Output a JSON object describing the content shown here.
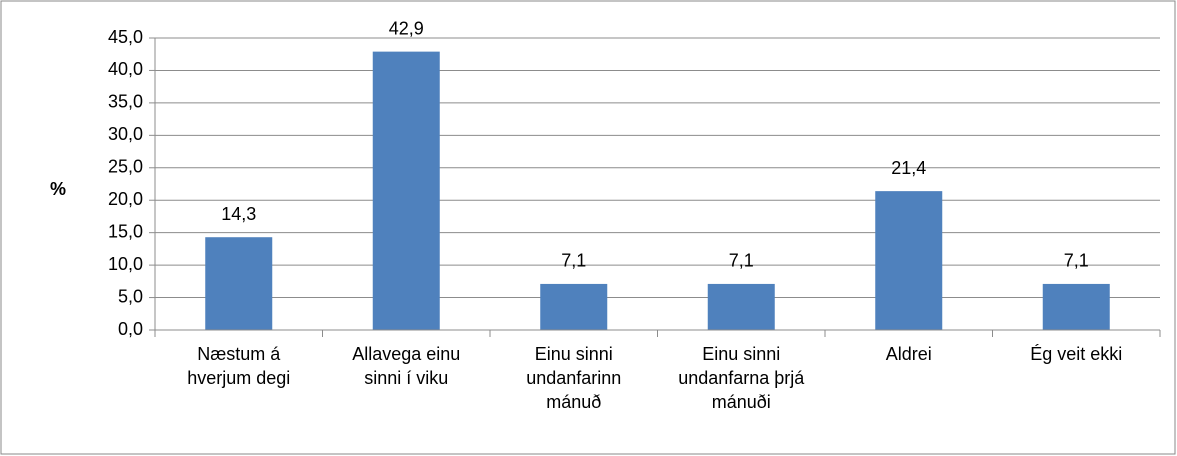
{
  "chart_data": {
    "type": "bar",
    "y_label": "%",
    "categories": [
      "Næstum á hverjum degi",
      "Allavega einu sinni í viku",
      "Einu sinni undanfarinn mánuð",
      "Einu sinni undanfarna þrjá mánuði",
      "Aldrei",
      "Ég veit ekki"
    ],
    "values": [
      14.3,
      42.9,
      7.1,
      7.1,
      21.4,
      7.1
    ],
    "value_labels": [
      "14,3",
      "42,9",
      "7,1",
      "7,1",
      "21,4",
      "7,1"
    ],
    "color": "#4f81bd",
    "ylim": [
      0,
      45
    ],
    "yticks": [
      {
        "value": 0,
        "label": "0,0"
      },
      {
        "value": 5,
        "label": "5,0"
      },
      {
        "value": 10,
        "label": "10,0"
      },
      {
        "value": 15,
        "label": "15,0"
      },
      {
        "value": 20,
        "label": "20,0"
      },
      {
        "value": 25,
        "label": "25,0"
      },
      {
        "value": 30,
        "label": "30,0"
      },
      {
        "value": 35,
        "label": "35,0"
      },
      {
        "value": 40,
        "label": "40,0"
      },
      {
        "value": 45,
        "label": "45,0"
      }
    ],
    "grid": true
  }
}
